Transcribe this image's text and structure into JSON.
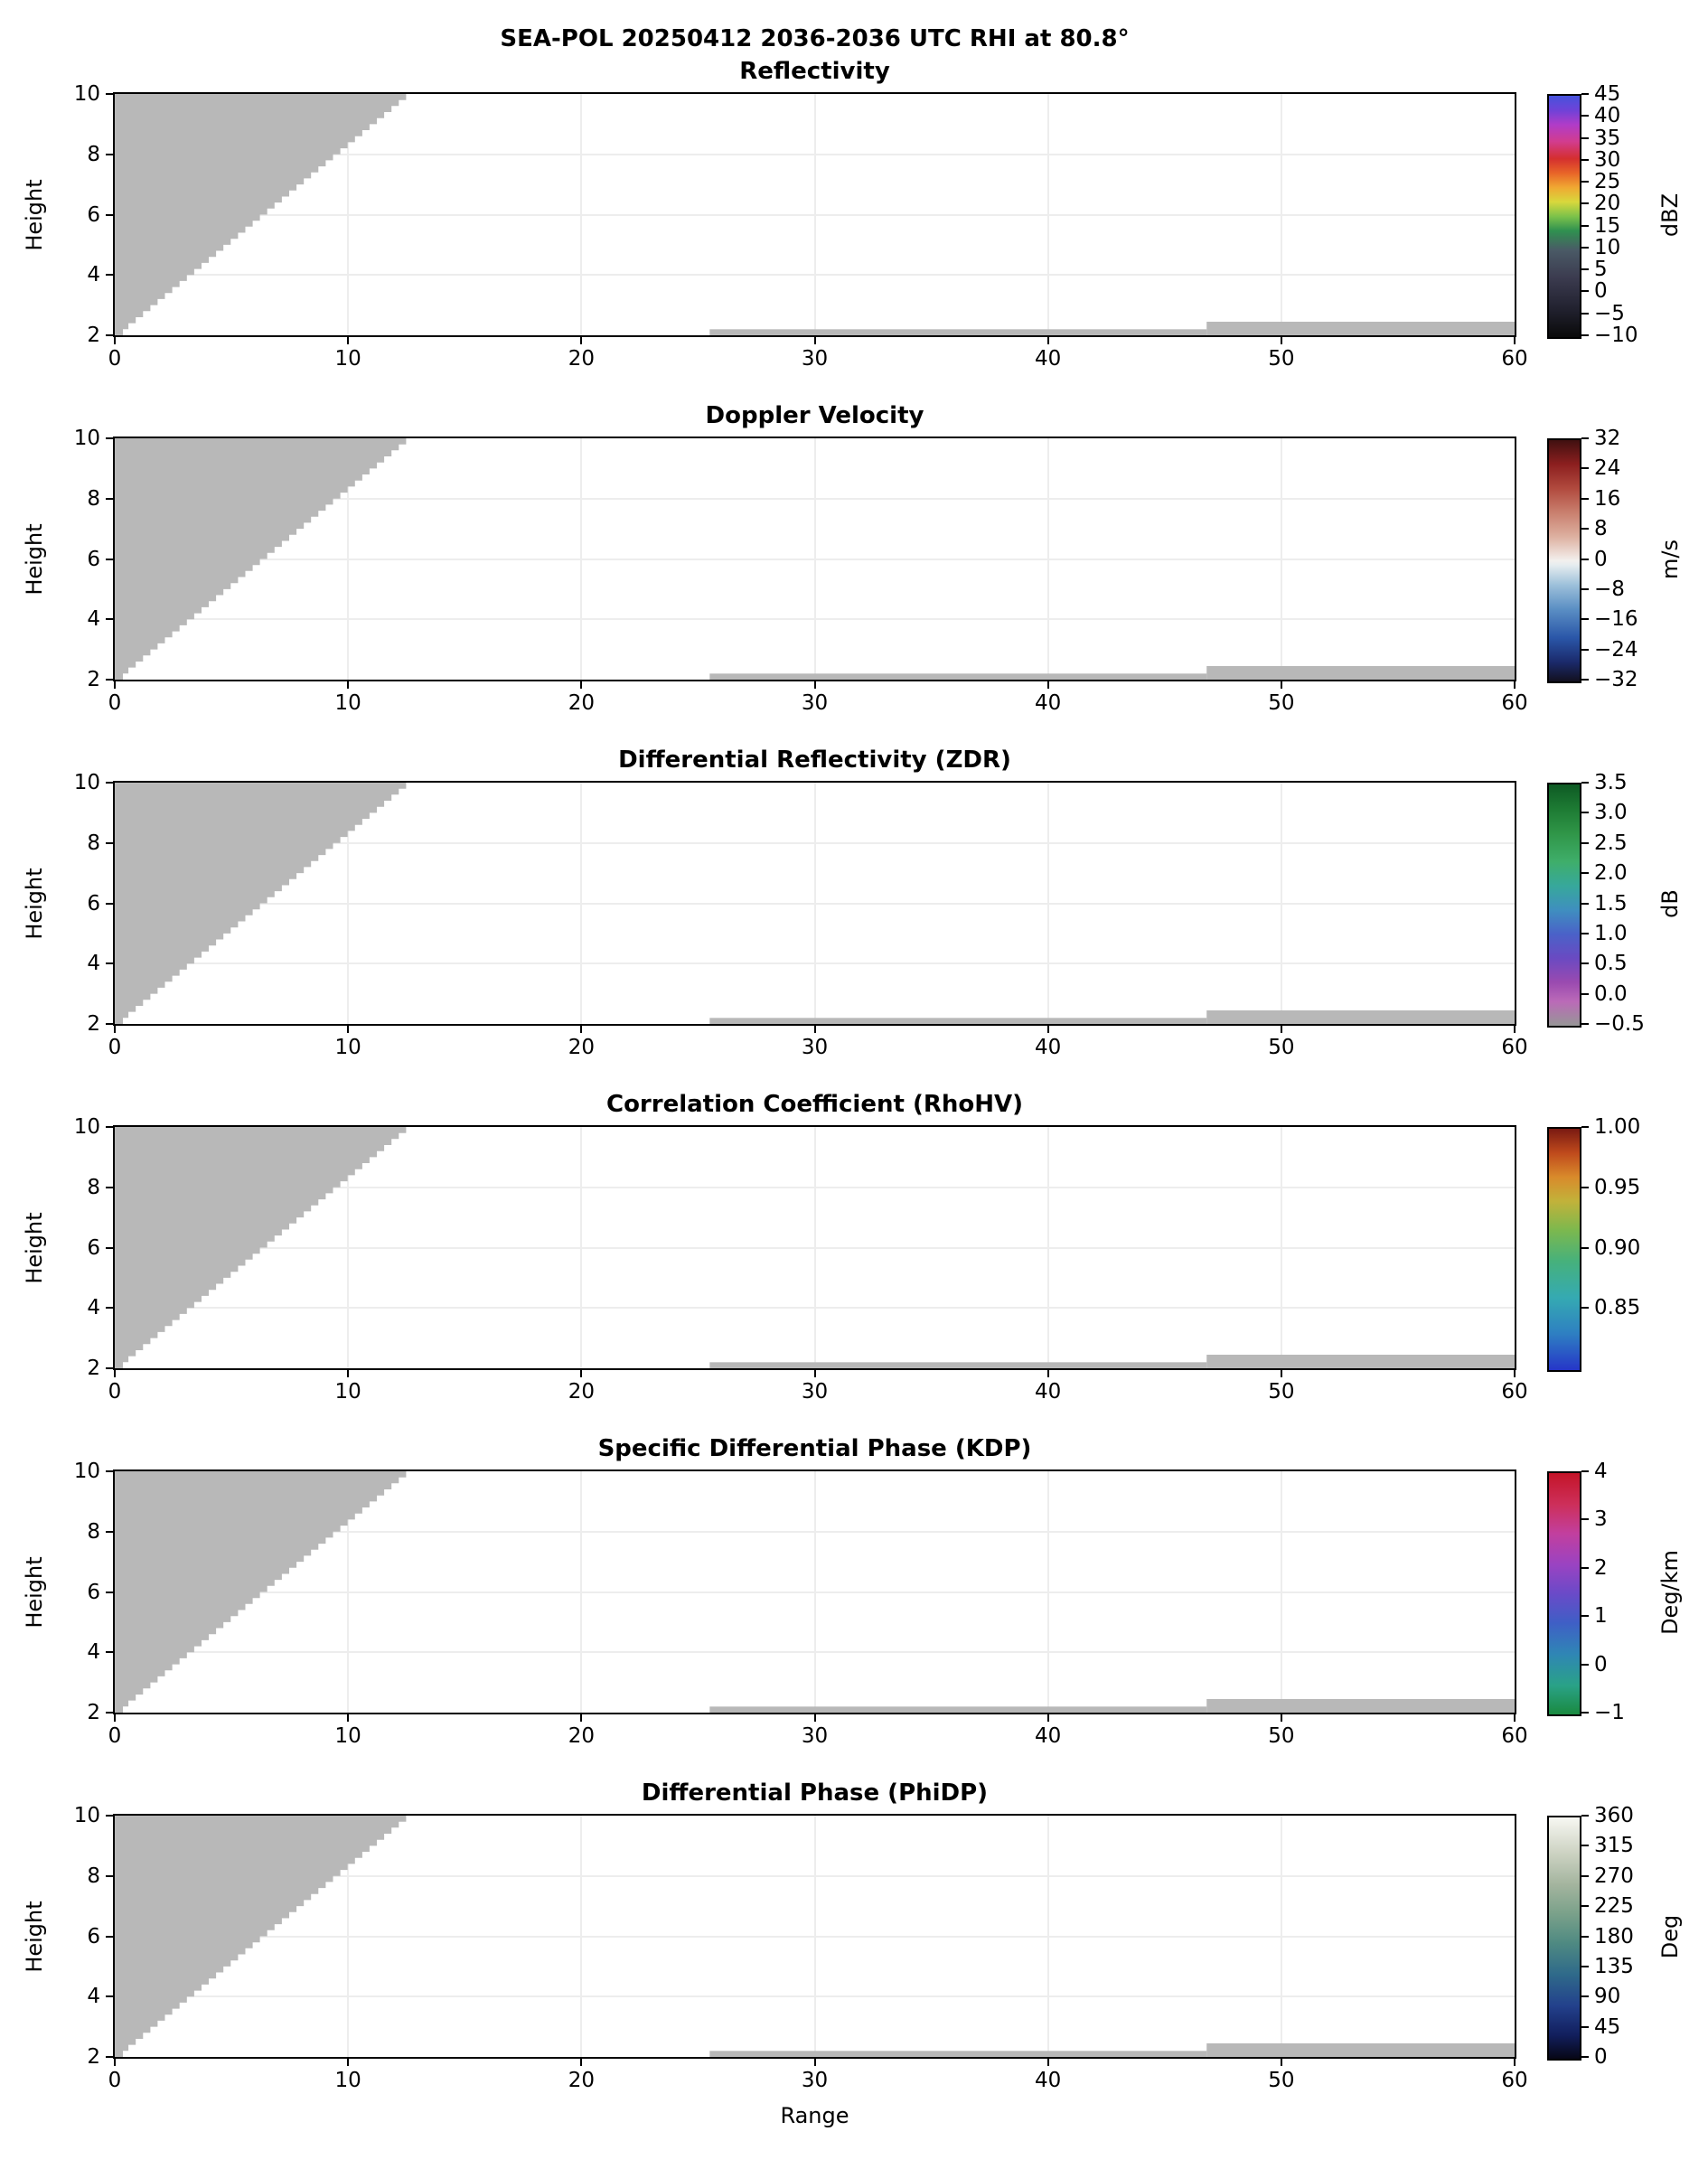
{
  "figure": {
    "suptitle": "SEA-POL 20250412 2036-2036 UTC RHI at 80.8°",
    "xlabel": "Range",
    "ylabel": "Height",
    "background": "#ffffff",
    "mask_color": "#b8b8b8",
    "grid_color": "#ededed"
  },
  "chart_data": {
    "type": "heatmap",
    "note": "Six stacked RHI radar cross-section panels; all range bins are below threshold and rendered as a gray masked wedge near the radar plus two thin gray strips along the bottom.",
    "x_range": [
      0,
      60
    ],
    "y_range": [
      2,
      10
    ],
    "grid": true,
    "x_ticks": [
      {
        "v": 0,
        "label": "0"
      },
      {
        "v": 10,
        "label": "10"
      },
      {
        "v": 20,
        "label": "20"
      },
      {
        "v": 30,
        "label": "30"
      },
      {
        "v": 40,
        "label": "40"
      },
      {
        "v": 50,
        "label": "50"
      },
      {
        "v": 60,
        "label": "60"
      }
    ],
    "y_ticks": [
      {
        "v": 2,
        "label": "2"
      },
      {
        "v": 4,
        "label": "4"
      },
      {
        "v": 6,
        "label": "6"
      },
      {
        "v": 8,
        "label": "8"
      },
      {
        "v": 10,
        "label": "10"
      }
    ],
    "x_gridlines": [
      10,
      20,
      30,
      40,
      50
    ],
    "y_gridlines": [
      4,
      6,
      8
    ],
    "masked_regions": {
      "wedge": {
        "apex_x": 0.35,
        "apex_y": 2.05,
        "top_x": 12.8,
        "top_y": 10.0,
        "step_dy": 0.2
      },
      "strips": [
        {
          "x0": 25.5,
          "x1": 46.8,
          "y0": 2.0,
          "y1": 2.2
        },
        {
          "x0": 46.8,
          "x1": 60.0,
          "y0": 2.0,
          "y1": 2.45
        }
      ]
    },
    "panels": [
      {
        "id": "reflectivity",
        "title": "Reflectivity",
        "unit": "dBZ",
        "cb_min": -10,
        "cb_max": 45,
        "cb_ticks": [
          {
            "v": 45,
            "label": "45"
          },
          {
            "v": 40,
            "label": "40"
          },
          {
            "v": 35,
            "label": "35"
          },
          {
            "v": 30,
            "label": "30"
          },
          {
            "v": 25,
            "label": "25"
          },
          {
            "v": 20,
            "label": "20"
          },
          {
            "v": 15,
            "label": "15"
          },
          {
            "v": 10,
            "label": "10"
          },
          {
            "v": 5,
            "label": "5"
          },
          {
            "v": 0,
            "label": "0"
          },
          {
            "v": -5,
            "label": "−5"
          },
          {
            "v": -10,
            "label": "−10"
          }
        ],
        "cb_stops": [
          [
            0.0,
            "#0a0a0a"
          ],
          [
            0.12,
            "#222230"
          ],
          [
            0.25,
            "#3c3c50"
          ],
          [
            0.36,
            "#4a5a66"
          ],
          [
            0.44,
            "#2f9050"
          ],
          [
            0.5,
            "#7cc24a"
          ],
          [
            0.56,
            "#d8d83c"
          ],
          [
            0.62,
            "#f0a832"
          ],
          [
            0.68,
            "#e86428"
          ],
          [
            0.74,
            "#d42f2f"
          ],
          [
            0.81,
            "#d23c8e"
          ],
          [
            0.88,
            "#b03cc8"
          ],
          [
            0.94,
            "#6f42d8"
          ],
          [
            1.0,
            "#4653dc"
          ]
        ]
      },
      {
        "id": "doppler-velocity",
        "title": "Doppler Velocity",
        "unit": "m/s",
        "cb_min": -32,
        "cb_max": 32,
        "cb_ticks": [
          {
            "v": 32,
            "label": "32"
          },
          {
            "v": 24,
            "label": "24"
          },
          {
            "v": 16,
            "label": "16"
          },
          {
            "v": 8,
            "label": "8"
          },
          {
            "v": 0,
            "label": "0"
          },
          {
            "v": -8,
            "label": "−8"
          },
          {
            "v": -16,
            "label": "−16"
          },
          {
            "v": -24,
            "label": "−24"
          },
          {
            "v": -32,
            "label": "−32"
          }
        ],
        "cb_stops": [
          [
            0.0,
            "#12101f"
          ],
          [
            0.08,
            "#1b2a6b"
          ],
          [
            0.18,
            "#2a56a8"
          ],
          [
            0.3,
            "#5b8fc4"
          ],
          [
            0.4,
            "#9dc0da"
          ],
          [
            0.48,
            "#e4ecef"
          ],
          [
            0.5,
            "#f2f0ee"
          ],
          [
            0.52,
            "#efe3de"
          ],
          [
            0.6,
            "#ddb0a0"
          ],
          [
            0.7,
            "#c97f6e"
          ],
          [
            0.8,
            "#b14a3e"
          ],
          [
            0.9,
            "#8c1f1f"
          ],
          [
            1.0,
            "#401010"
          ]
        ]
      },
      {
        "id": "zdr",
        "title": "Differential Reflectivity (ZDR)",
        "unit": "dB",
        "cb_min": -0.5,
        "cb_max": 3.5,
        "cb_ticks": [
          {
            "v": 3.5,
            "label": "3.5"
          },
          {
            "v": 3.0,
            "label": "3.0"
          },
          {
            "v": 2.5,
            "label": "2.5"
          },
          {
            "v": 2.0,
            "label": "2.0"
          },
          {
            "v": 1.5,
            "label": "1.5"
          },
          {
            "v": 1.0,
            "label": "1.0"
          },
          {
            "v": 0.5,
            "label": "0.5"
          },
          {
            "v": 0.0,
            "label": "0.0"
          },
          {
            "v": -0.5,
            "label": "−0.5"
          }
        ],
        "cb_stops": [
          [
            0.0,
            "#969696"
          ],
          [
            0.1,
            "#bb6ab8"
          ],
          [
            0.18,
            "#9a4ab0"
          ],
          [
            0.28,
            "#6a4ac2"
          ],
          [
            0.38,
            "#4a62c8"
          ],
          [
            0.48,
            "#3f8fbf"
          ],
          [
            0.58,
            "#37a89b"
          ],
          [
            0.68,
            "#3fae6a"
          ],
          [
            0.8,
            "#2f9547"
          ],
          [
            0.9,
            "#1d7a33"
          ],
          [
            1.0,
            "#0e5a24"
          ]
        ]
      },
      {
        "id": "rhohv",
        "title": "Correlation Coefficient (RhoHV)",
        "unit": "",
        "cb_min": 0.8,
        "cb_max": 1.0,
        "cb_ticks": [
          {
            "v": 1.0,
            "label": "1.00"
          },
          {
            "v": 0.95,
            "label": "0.95"
          },
          {
            "v": 0.9,
            "label": "0.90"
          },
          {
            "v": 0.85,
            "label": "0.85"
          }
        ],
        "cb_stops": [
          [
            0.0,
            "#2636c8"
          ],
          [
            0.15,
            "#2e7fc2"
          ],
          [
            0.3,
            "#35aab2"
          ],
          [
            0.45,
            "#46b17c"
          ],
          [
            0.58,
            "#7cb84e"
          ],
          [
            0.7,
            "#c2b23a"
          ],
          [
            0.8,
            "#d98a2b"
          ],
          [
            0.9,
            "#bf4a1c"
          ],
          [
            1.0,
            "#7a1a12"
          ]
        ]
      },
      {
        "id": "kdp",
        "title": "Specific Differential Phase (KDP)",
        "unit": "Deg/km",
        "cb_min": -1,
        "cb_max": 4,
        "cb_ticks": [
          {
            "v": 4,
            "label": "4"
          },
          {
            "v": 3,
            "label": "3"
          },
          {
            "v": 2,
            "label": "2"
          },
          {
            "v": 1,
            "label": "1"
          },
          {
            "v": 0,
            "label": "0"
          },
          {
            "v": -1,
            "label": "−1"
          }
        ],
        "cb_stops": [
          [
            0.0,
            "#1a8a40"
          ],
          [
            0.12,
            "#2aa287"
          ],
          [
            0.25,
            "#2f86b5"
          ],
          [
            0.38,
            "#3f5fc6"
          ],
          [
            0.5,
            "#6a4ac8"
          ],
          [
            0.62,
            "#9a43c2"
          ],
          [
            0.75,
            "#c23f9e"
          ],
          [
            0.87,
            "#cd2f5a"
          ],
          [
            1.0,
            "#c41428"
          ]
        ]
      },
      {
        "id": "phidp",
        "title": "Differential Phase (PhiDP)",
        "unit": "Deg",
        "cb_min": 0,
        "cb_max": 360,
        "cb_ticks": [
          {
            "v": 360,
            "label": "360"
          },
          {
            "v": 315,
            "label": "315"
          },
          {
            "v": 270,
            "label": "270"
          },
          {
            "v": 225,
            "label": "225"
          },
          {
            "v": 180,
            "label": "180"
          },
          {
            "v": 135,
            "label": "135"
          },
          {
            "v": 90,
            "label": "90"
          },
          {
            "v": 45,
            "label": "45"
          },
          {
            "v": 0,
            "label": "0"
          }
        ],
        "cb_stops": [
          [
            0.0,
            "#070716"
          ],
          [
            0.1,
            "#121f5e"
          ],
          [
            0.22,
            "#23418c"
          ],
          [
            0.35,
            "#2f6a8a"
          ],
          [
            0.48,
            "#4f8a82"
          ],
          [
            0.6,
            "#7aa18a"
          ],
          [
            0.72,
            "#a3b49e"
          ],
          [
            0.85,
            "#ccd2c2"
          ],
          [
            1.0,
            "#f7f7f2"
          ]
        ]
      }
    ]
  }
}
